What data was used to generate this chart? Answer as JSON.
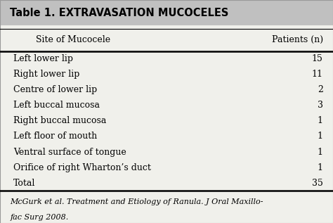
{
  "title": "Table 1. EXTRAVASATION MUCOCELES",
  "col1_header": "Site of Mucocele",
  "col2_header": "Patients (n)",
  "rows": [
    [
      "Left lower lip",
      "15"
    ],
    [
      "Right lower lip",
      "11"
    ],
    [
      "Centre of lower lip",
      "2"
    ],
    [
      "Left buccal mucosa",
      "3"
    ],
    [
      "Right buccal mucosa",
      "1"
    ],
    [
      "Left floor of mouth",
      "1"
    ],
    [
      "Ventral surface of tongue",
      "1"
    ],
    [
      "Orifice of right Wharton’s duct",
      "1"
    ],
    [
      "Total",
      "35"
    ]
  ],
  "footnote_line1": "McGurk et al. Treatment and Etiology of Ranula. J Oral Maxillo-",
  "footnote_line2": "fac Surg 2008.",
  "header_bg": "#c0c0c0",
  "table_bg": "#f0f0eb",
  "title_fontsize": 10.5,
  "header_fontsize": 9,
  "row_fontsize": 9,
  "footnote_fontsize": 8
}
